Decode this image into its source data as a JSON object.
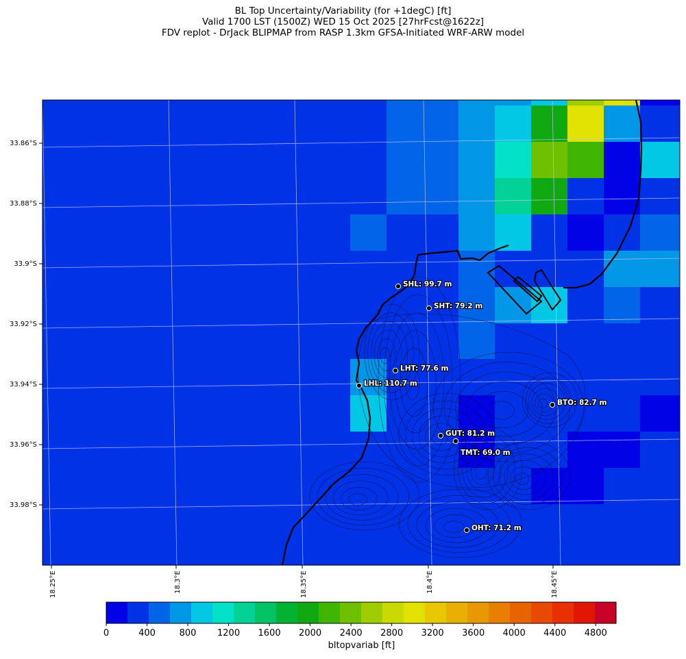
{
  "title": {
    "line1": "BL Top Uncertainty/Variability (for +1degC) [ft]",
    "line2": "Valid 1700 LST (1500Z) WED 15 Oct 2025 [27hrFcst@1622z]",
    "line3": "FDV replot - DrJack BLIPMAP from RASP 1.3km GFSA-Initiated WRF-ARW model"
  },
  "lat_labels": [
    "33.86°S",
    "33.88°S",
    "33.9°S",
    "33.92°S",
    "33.94°S",
    "33.96°S",
    "33.98°S"
  ],
  "lon_labels": [
    "18.25°E",
    "18.3°E",
    "18.35°E",
    "18.4°E",
    "18.45°E"
  ],
  "stations": [
    {
      "label": "SHL: 99.7 m"
    },
    {
      "label": "SHT: 79.2 m"
    },
    {
      "label": "LHT: 77.6 m"
    },
    {
      "label": "LHL: 110.7 m"
    },
    {
      "label": "BTO: 82.7 m"
    },
    {
      "label": "GUT: 81.2 m"
    },
    {
      "label": "TMT: 69.0 m"
    },
    {
      "label": "OHT: 71.2 m"
    }
  ],
  "colorbar": {
    "label": "bltopvariab [ft]",
    "ticks": [
      "0",
      "400",
      "800",
      "1200",
      "1600",
      "2000",
      "2400",
      "2800",
      "3200",
      "3600",
      "4000",
      "4400",
      "4800"
    ],
    "colors": [
      "#0202e6",
      "#0232e6",
      "#0264e6",
      "#0296e6",
      "#02c8e6",
      "#02e0c8",
      "#02d296",
      "#02c464",
      "#02b232",
      "#10a810",
      "#40b402",
      "#70c002",
      "#a0cc02",
      "#c8da02",
      "#e2e202",
      "#e8c802",
      "#e8b002",
      "#e89802",
      "#e87e02",
      "#e86402",
      "#e84a02",
      "#e83002",
      "#e01602",
      "#c80226"
    ],
    "min": 0,
    "max": 5000
  },
  "grid_values": {
    "description_colors_index": "0=#0202e6 1=#0232e6 2=#0264e6 3=#0296e6 4=#02c8e6 5=#02e0c8 6=#02d296 9=#10a810 10=#40b402 11=#70c002 12=#a0cc02 14=#e2e202",
    "rows": [
      [
        1,
        1,
        1,
        1,
        1,
        1,
        1,
        1,
        1,
        1,
        2,
        2,
        3,
        3,
        4,
        12,
        14,
        0
      ],
      [
        1,
        1,
        1,
        1,
        1,
        1,
        1,
        1,
        1,
        1,
        2,
        2,
        3,
        4,
        9,
        14,
        3,
        1
      ],
      [
        1,
        1,
        1,
        1,
        1,
        1,
        1,
        1,
        1,
        1,
        2,
        2,
        3,
        5,
        11,
        10,
        0,
        4
      ],
      [
        1,
        1,
        1,
        1,
        1,
        1,
        1,
        1,
        1,
        1,
        2,
        2,
        3,
        6,
        9,
        1,
        0,
        1
      ],
      [
        1,
        1,
        1,
        1,
        1,
        1,
        1,
        1,
        1,
        2,
        1,
        1,
        3,
        4,
        1,
        0,
        1,
        2
      ],
      [
        1,
        1,
        1,
        1,
        1,
        1,
        1,
        1,
        1,
        1,
        1,
        1,
        2,
        1,
        1,
        1,
        3,
        3
      ],
      [
        1,
        1,
        1,
        1,
        1,
        1,
        1,
        1,
        1,
        1,
        1,
        1,
        2,
        3,
        4,
        1,
        2,
        1
      ],
      [
        1,
        1,
        1,
        1,
        1,
        1,
        1,
        1,
        1,
        1,
        1,
        1,
        2,
        1,
        1,
        1,
        1,
        1
      ],
      [
        1,
        1,
        1,
        1,
        1,
        1,
        1,
        1,
        1,
        3,
        1,
        1,
        1,
        1,
        1,
        1,
        1,
        1
      ],
      [
        1,
        1,
        1,
        1,
        1,
        1,
        1,
        1,
        1,
        4,
        1,
        1,
        0,
        1,
        1,
        1,
        1,
        0
      ],
      [
        1,
        1,
        1,
        1,
        1,
        1,
        1,
        1,
        1,
        1,
        1,
        1,
        0,
        1,
        1,
        0,
        0,
        1
      ],
      [
        1,
        1,
        1,
        1,
        1,
        1,
        1,
        1,
        1,
        1,
        1,
        1,
        1,
        1,
        0,
        0,
        1,
        1
      ],
      [
        1,
        1,
        1,
        1,
        1,
        1,
        1,
        1,
        1,
        1,
        1,
        1,
        1,
        1,
        1,
        1,
        1,
        1
      ]
    ]
  }
}
